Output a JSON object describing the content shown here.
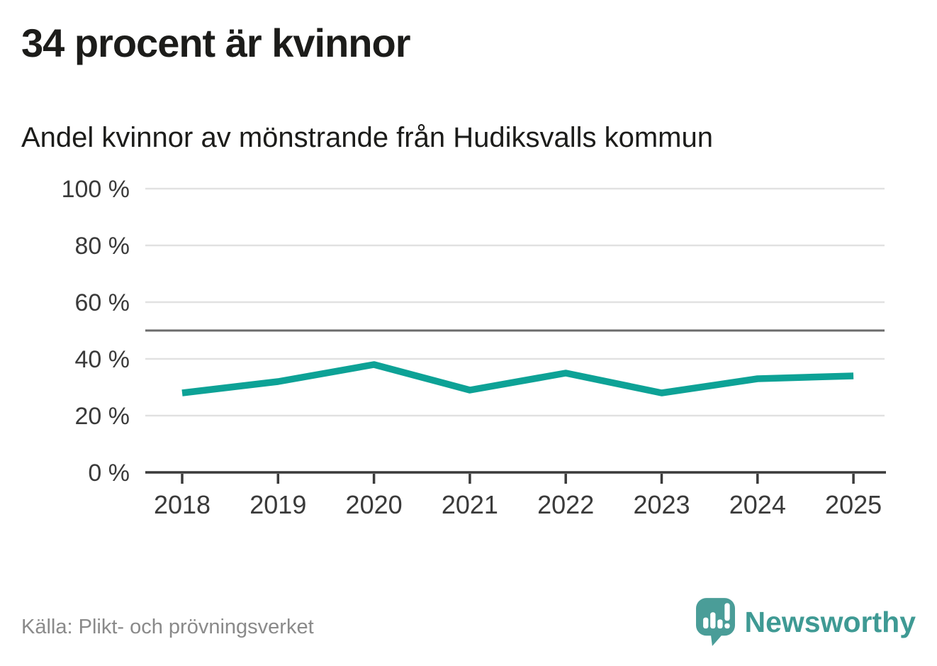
{
  "header": {
    "title": "34 procent är kvinnor",
    "subtitle": "Andel kvinnor av mönstrande från Hudiksvalls kommun"
  },
  "chart_data": {
    "type": "line",
    "title": "34 procent är kvinnor",
    "subtitle": "Andel kvinnor av mönstrande från Hudiksvalls kommun",
    "categories": [
      "2018",
      "2019",
      "2020",
      "2021",
      "2022",
      "2023",
      "2024",
      "2025"
    ],
    "values": [
      28,
      32,
      38,
      29,
      35,
      28,
      33,
      34
    ],
    "series_name": "Andel kvinnor av mönstrande",
    "unit": "%",
    "xlabel": "",
    "ylabel": "",
    "ylim": [
      0,
      100
    ],
    "yticks": [
      {
        "value": 0,
        "label": "0 %"
      },
      {
        "value": 20,
        "label": "20 %"
      },
      {
        "value": 40,
        "label": "40 %"
      },
      {
        "value": 60,
        "label": "60 %"
      },
      {
        "value": 80,
        "label": "80 %"
      },
      {
        "value": 100,
        "label": "100 %"
      }
    ],
    "reference_line": 50,
    "grid": "horizontal",
    "legend": "none",
    "line_color": "#0da296",
    "gridline_color": "#e1e1e1",
    "reference_line_color": "#6b6b6b",
    "axis_color": "#3a3a3a",
    "tick_label_color": "#3a3a3a"
  },
  "footer": {
    "source": "Källa: Plikt- och prövningsverket",
    "brand": "Newsworthy",
    "brand_color": "#3f9a94",
    "logo_color": "#4a9d98"
  }
}
